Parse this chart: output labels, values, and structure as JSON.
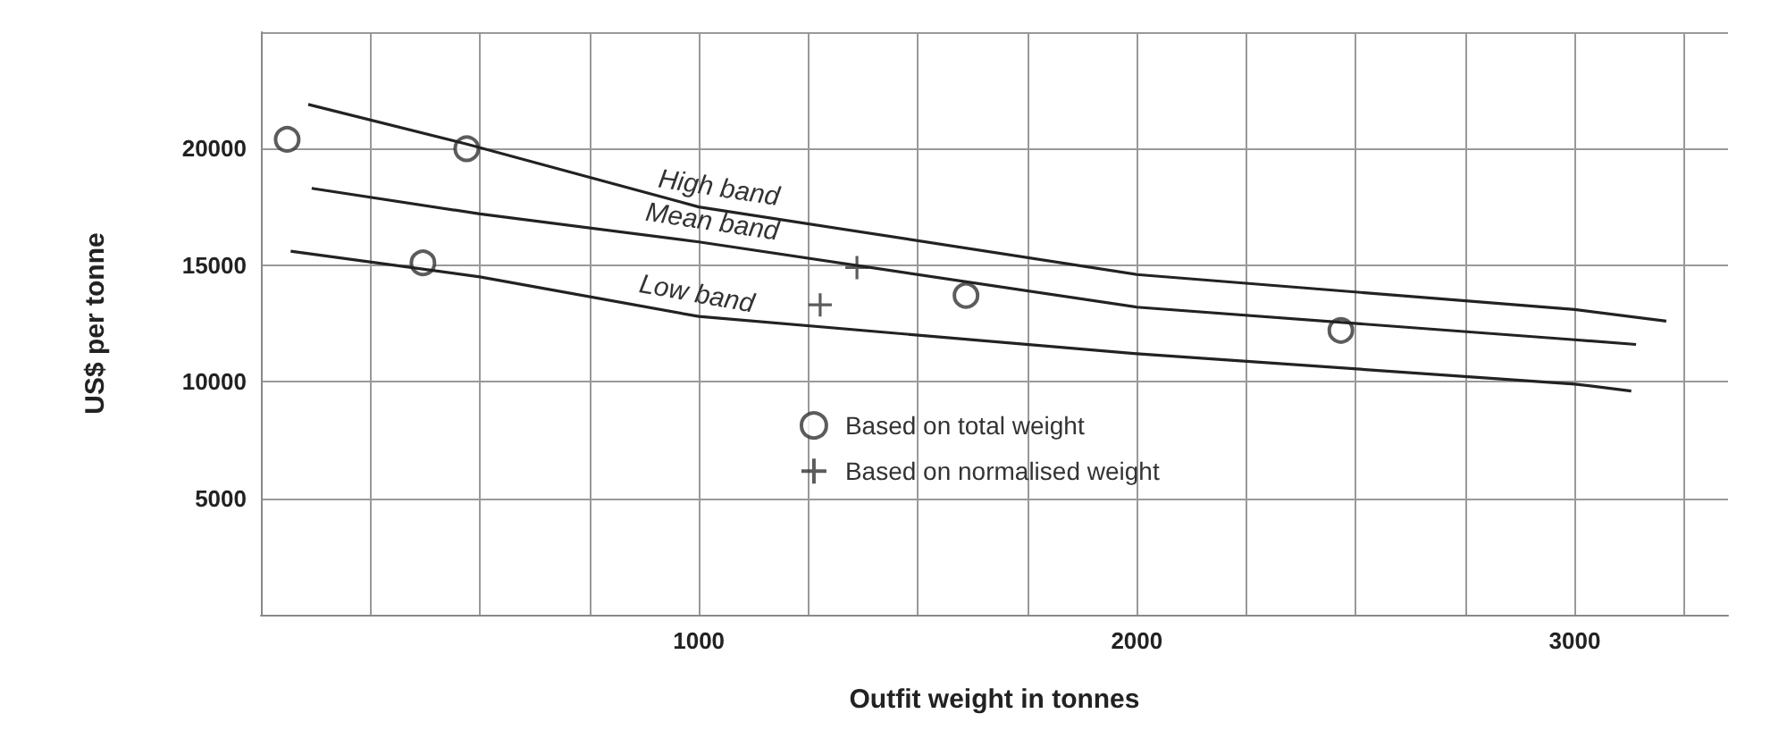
{
  "chart_data": {
    "type": "scatter",
    "xlabel": "Outfit weight in tonnes",
    "ylabel": "US$ per tonne",
    "xlim": [
      0,
      3350
    ],
    "ylim": [
      0,
      25000
    ],
    "xticks": [
      {
        "value": 250,
        "label": null
      },
      {
        "value": 500,
        "label": null
      },
      {
        "value": 750,
        "label": null
      },
      1000,
      {
        "value": 1250,
        "label": null
      },
      {
        "value": 1500,
        "label": null
      },
      {
        "value": 1750,
        "label": null
      },
      2000,
      {
        "value": 2250,
        "label": null
      },
      {
        "value": 2500,
        "label": null
      },
      {
        "value": 2750,
        "label": null
      },
      3000,
      {
        "value": 3250,
        "label": null
      }
    ],
    "yticks": [
      5000,
      10000,
      15000,
      20000,
      {
        "value": 25000,
        "label": null
      }
    ],
    "grid": true,
    "legend": "center",
    "series": [
      {
        "name": "Based on total weight",
        "marker": "circle",
        "color": "#333333",
        "x": [
          60,
          470,
          370,
          1610,
          2466
        ],
        "values": [
          20400,
          20000,
          15100,
          13700,
          12200
        ]
      },
      {
        "name": "Based on normalised weight",
        "marker": "cross",
        "color": "#333333",
        "x": [
          1361,
          1277
        ],
        "values": [
          14900,
          13300
        ]
      },
      {
        "name": "High band",
        "type": "line",
        "marker": "none",
        "color": "#222222",
        "x": [
          108,
          470,
          1000,
          2000,
          3000,
          3209
        ],
        "values": [
          21900,
          20200,
          17500,
          14600,
          13100,
          12600
        ]
      },
      {
        "name": "Mean band",
        "type": "line",
        "marker": "none",
        "color": "#222222",
        "x": [
          116,
          500,
          1000,
          2000,
          3000,
          3140
        ],
        "values": [
          18300,
          17200,
          16000,
          13200,
          11800,
          11600
        ]
      },
      {
        "name": "Low band",
        "type": "line",
        "marker": "none",
        "color": "#222222",
        "x": [
          68,
          500,
          1000,
          2000,
          3000,
          3129
        ],
        "values": [
          15600,
          14500,
          12800,
          11200,
          9900,
          9600
        ]
      }
    ]
  }
}
